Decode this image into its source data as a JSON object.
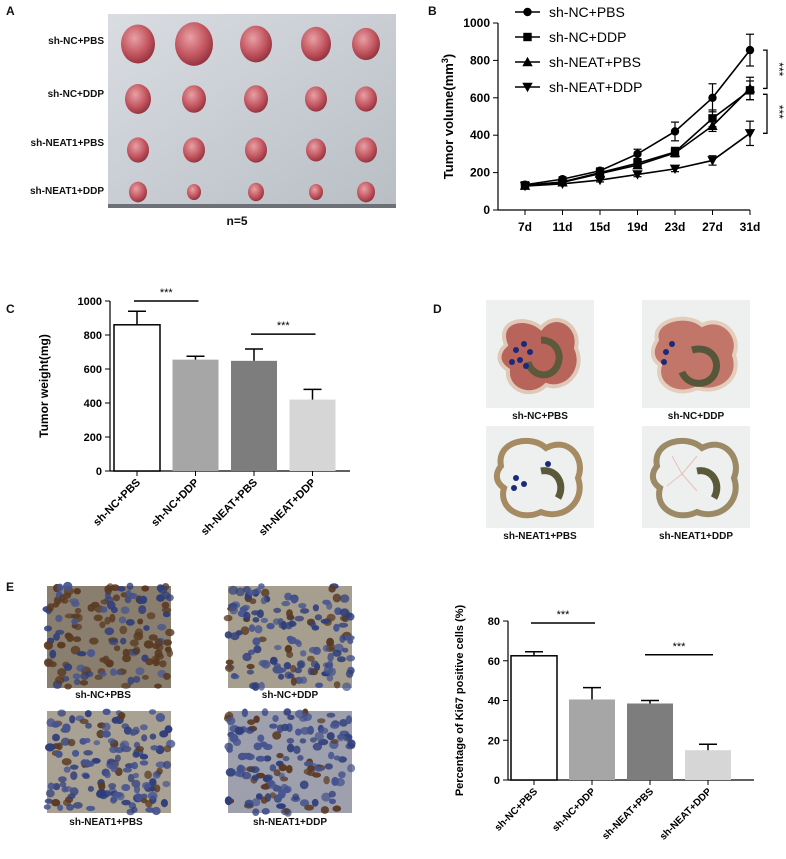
{
  "panels": {
    "A": {
      "letter": "A",
      "row_labels": [
        "sh-NC+PBS",
        "sh-NC+DDP",
        "sh-NEAT1+PBS",
        "sh-NEAT1+DDP"
      ],
      "caption": "n=5"
    },
    "D": {
      "letter": "D",
      "labels": [
        "sh-NC+PBS",
        "sh-NC+DDP",
        "sh-NEAT1+PBS",
        "sh-NEAT1+DDP"
      ]
    },
    "E": {
      "letter": "E",
      "labels": [
        "sh-NC+PBS",
        "sh-NC+DDP",
        "sh-NEAT1+PBS",
        "sh-NEAT1+DDP"
      ]
    }
  },
  "chart_data": [
    {
      "panel": "B",
      "type": "line",
      "x": [
        "7d",
        "11d",
        "15d",
        "19d",
        "23d",
        "27d",
        "31d"
      ],
      "ylabel": "Tumor volume(mm",
      "ylabel_sup": "3",
      "ylabel_close": ")",
      "ylim": [
        0,
        1000
      ],
      "yticks": [
        "0",
        "200",
        "400",
        "600",
        "800",
        "1000"
      ],
      "series": [
        {
          "name": "sh-NC+PBS",
          "marker": "circle",
          "values": [
            135,
            165,
            210,
            300,
            420,
            600,
            855
          ],
          "errors": [
            10,
            12,
            15,
            25,
            50,
            75,
            85
          ]
        },
        {
          "name": "sh-NC+DDP",
          "marker": "square",
          "values": [
            132,
            150,
            200,
            250,
            310,
            490,
            640
          ],
          "errors": [
            8,
            10,
            12,
            20,
            25,
            45,
            50
          ]
        },
        {
          "name": "sh-NEAT+PBS",
          "marker": "triangle",
          "values": [
            130,
            148,
            195,
            240,
            305,
            450,
            650
          ],
          "errors": [
            8,
            10,
            12,
            15,
            20,
            30,
            60
          ]
        },
        {
          "name": "sh-NEAT+DDP",
          "marker": "triangle-down",
          "values": [
            128,
            140,
            160,
            190,
            220,
            265,
            410
          ],
          "errors": [
            8,
            8,
            10,
            12,
            15,
            25,
            65
          ]
        }
      ],
      "annotations": [
        "***",
        "***"
      ]
    },
    {
      "panel": "C",
      "type": "bar",
      "categories": [
        "sh-NC+PBS",
        "sh-NC+DDP",
        "sh-NEAT+PBS",
        "sh-NEAT+DDP"
      ],
      "values": [
        860,
        655,
        648,
        420
      ],
      "errors": [
        80,
        20,
        70,
        60
      ],
      "colors": [
        "#ffffff",
        "#a6a6a6",
        "#7d7d7d",
        "#d6d6d6"
      ],
      "ylabel": "Tumor weight(mg)",
      "ylim": [
        0,
        1000
      ],
      "yticks": [
        "0",
        "200",
        "400",
        "600",
        "800",
        "1000"
      ],
      "annotations": [
        "***",
        "***"
      ]
    },
    {
      "panel": "E",
      "type": "bar",
      "categories": [
        "sh-NC+PBS",
        "sh-NC+DDP",
        "sh-NEAT+PBS",
        "sh-NEAT+DDP"
      ],
      "values": [
        62.5,
        40.5,
        38.5,
        15
      ],
      "errors": [
        2,
        6,
        1.5,
        3
      ],
      "colors": [
        "#ffffff",
        "#a6a6a6",
        "#7d7d7d",
        "#d6d6d6"
      ],
      "ylabel": "Percentage of Ki67 positive cells (%)",
      "ylim": [
        0,
        80
      ],
      "yticks": [
        "0",
        "20",
        "40",
        "60",
        "80"
      ],
      "annotations": [
        "***",
        "***"
      ]
    }
  ]
}
